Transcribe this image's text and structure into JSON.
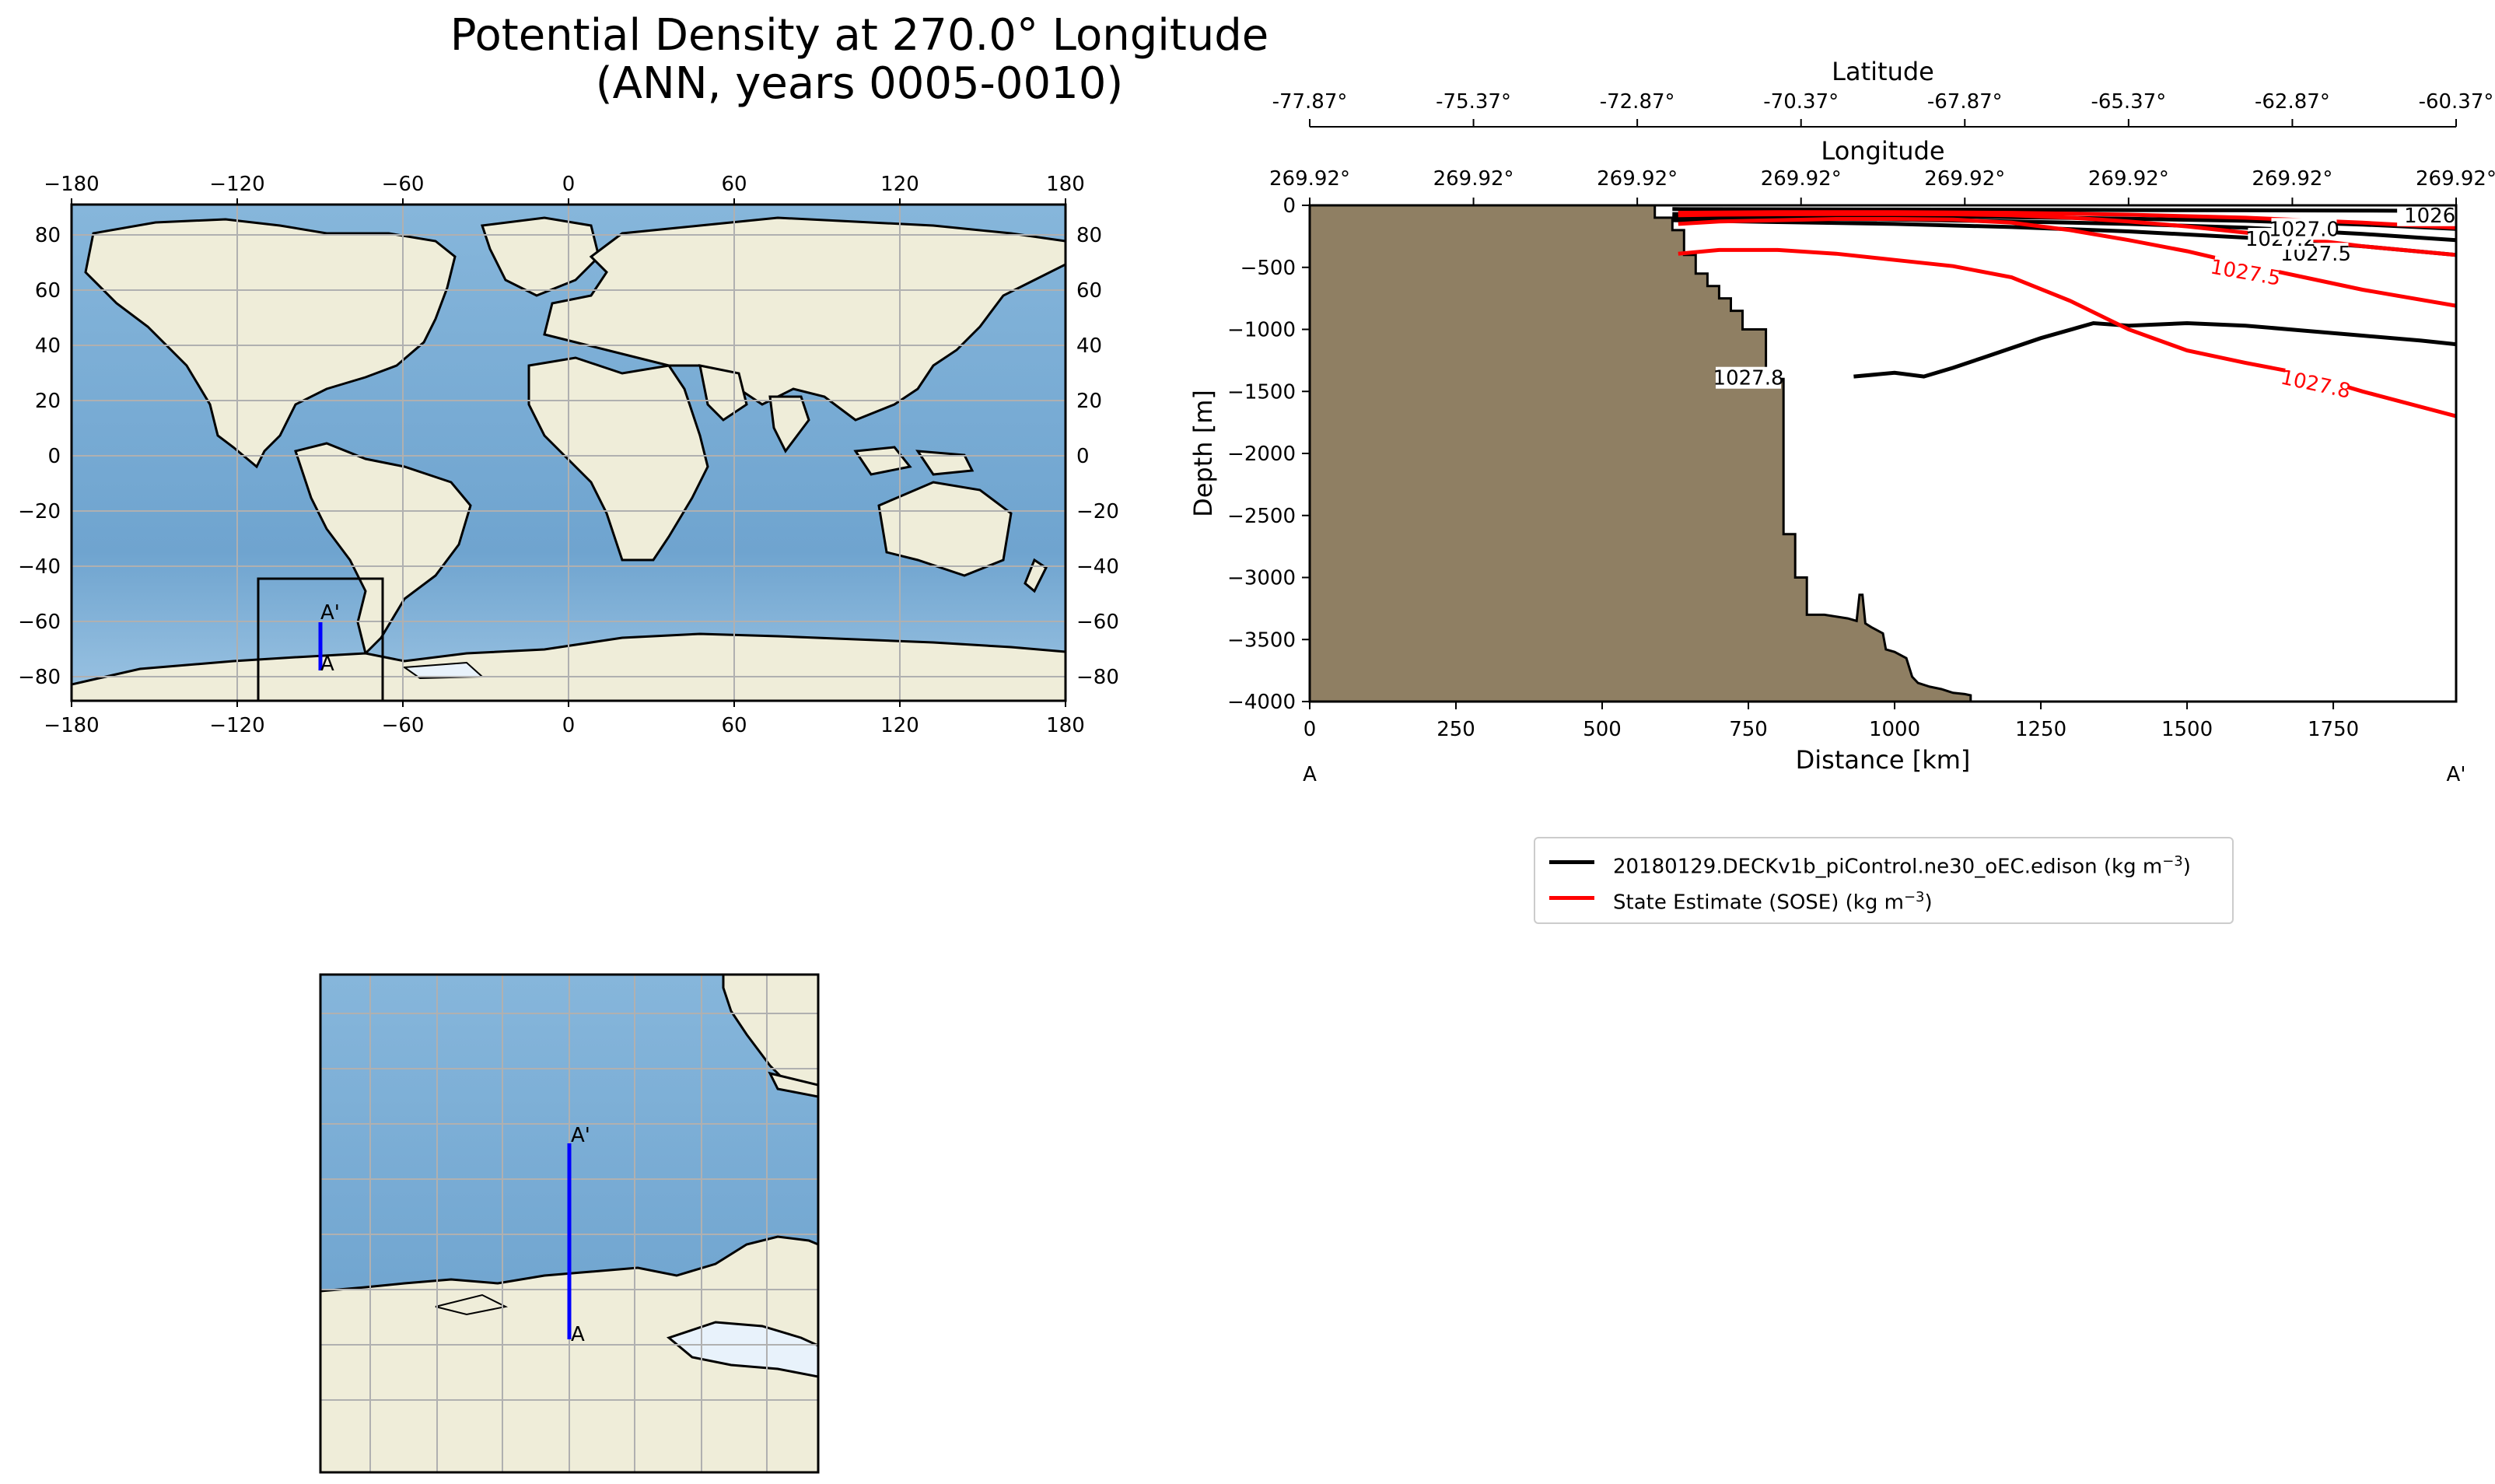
{
  "figure": {
    "title_line1": "Potential Density at 270.0° Longitude",
    "title_line2": "(ANN, years 0005-0010)"
  },
  "colors": {
    "ocean": "#7aacd3",
    "land": "#efedd9",
    "ice": "#e8f2fb",
    "bathymetry": "#8f7f63",
    "model_line": "#000000",
    "obs_line": "#ff0000",
    "transect": "#0000ff",
    "grid": "#b0b0b0"
  },
  "global_map": {
    "x_ticks": [
      "−180",
      "−120",
      "−60",
      "0",
      "60",
      "120",
      "180"
    ],
    "y_ticks": [
      "80",
      "60",
      "40",
      "20",
      "0",
      "−20",
      "−40",
      "−60",
      "−80"
    ],
    "transect_start_label": "A",
    "transect_end_label": "A'"
  },
  "inset_map": {
    "transect_start_label": "A",
    "transect_end_label": "A'"
  },
  "chart_data": [
    {
      "type": "line",
      "subtype": "contour-section",
      "xlabel": "Distance [km]",
      "ylabel": "Depth [m]",
      "xlim": [
        0,
        1960
      ],
      "ylim": [
        -4000,
        0
      ],
      "x_ticks": [
        0,
        250,
        500,
        750,
        1000,
        1250,
        1500,
        1750
      ],
      "y_ticks": [
        0,
        -500,
        -1000,
        -1500,
        -2000,
        -2500,
        -3000,
        -3500,
        -4000
      ],
      "x_tick_labels": [
        "0",
        "250",
        "500",
        "750",
        "1000",
        "1250",
        "1500",
        "1750"
      ],
      "y_tick_labels": [
        "0",
        "−500",
        "−1000",
        "−1500",
        "−2000",
        "−2500",
        "−3000",
        "−3500",
        "−4000"
      ],
      "section_start_label": "A",
      "section_end_label": "A'",
      "secondary_axes": {
        "longitude_label": "Longitude",
        "longitude_ticks": [
          "269.92°",
          "269.92°",
          "269.92°",
          "269.92°",
          "269.92°",
          "269.92°",
          "269.92°",
          "269.92°"
        ],
        "latitude_label": "Latitude",
        "latitude_ticks": [
          "-77.87°",
          "-75.37°",
          "-72.87°",
          "-70.37°",
          "-67.87°",
          "-65.37°",
          "-62.87°",
          "-60.37°"
        ]
      },
      "legend": [
        {
          "name": "20180129.DECKv1b_piControl.ne30_oEC.edison (kg m",
          "suffix": ")",
          "exponent": "−3",
          "color": "#000000"
        },
        {
          "name": "State Estimate (SOSE) (kg m",
          "suffix": ")",
          "exponent": "−3",
          "color": "#ff0000"
        }
      ],
      "bathymetry_profile": {
        "distance_km": [
          0,
          590,
          590,
          620,
          620,
          640,
          640,
          660,
          660,
          680,
          680,
          700,
          700,
          720,
          720,
          740,
          740,
          780,
          780,
          810,
          810,
          830,
          830,
          850,
          850,
          880,
          880,
          920,
          935,
          940,
          945,
          950,
          960,
          980,
          985,
          1000,
          1020,
          1030,
          1040,
          1060,
          1080,
          1100,
          1120,
          1130,
          1130,
          0
        ],
        "depth_m": [
          0,
          0,
          -100,
          -100,
          -200,
          -200,
          -400,
          -400,
          -550,
          -550,
          -650,
          -650,
          -750,
          -750,
          -850,
          -850,
          -1000,
          -1000,
          -1400,
          -1400,
          -2650,
          -2650,
          -3000,
          -3000,
          -3300,
          -3300,
          -3300,
          -3330,
          -3350,
          -3140,
          -3140,
          -3370,
          -3400,
          -3450,
          -3580,
          -3600,
          -3650,
          -3800,
          -3850,
          -3880,
          -3900,
          -3930,
          -3940,
          -3950,
          -4000,
          -4000
        ]
      },
      "series": [
        {
          "name": "model 1027.8",
          "label": "1027.8",
          "color": "#000000",
          "x": [
            930,
            1000,
            1050,
            1100,
            1150,
            1250,
            1340,
            1400,
            1500,
            1600,
            1700,
            1800,
            1900,
            1960
          ],
          "y": [
            -1380,
            -1350,
            -1380,
            -1310,
            -1230,
            -1070,
            -950,
            -970,
            -950,
            -970,
            -1010,
            -1050,
            -1090,
            -1120
          ]
        },
        {
          "name": "model 1027.5",
          "label": "1027.5",
          "color": "#000000",
          "x": [
            620,
            800,
            1000,
            1200,
            1400,
            1600,
            1800,
            1960
          ],
          "y": [
            -120,
            -135,
            -150,
            -175,
            -210,
            -260,
            -330,
            -400
          ]
        },
        {
          "name": "model 1027.2",
          "label": "1027.2",
          "color": "#000000",
          "x": [
            620,
            800,
            1000,
            1200,
            1400,
            1600,
            1800,
            1960
          ],
          "y": [
            -95,
            -105,
            -115,
            -130,
            -150,
            -180,
            -230,
            -280
          ]
        },
        {
          "name": "model 1027.0",
          "label": "1027.0",
          "color": "#000000",
          "x": [
            620,
            800,
            1000,
            1200,
            1400,
            1600,
            1800,
            1960
          ],
          "y": [
            -70,
            -78,
            -85,
            -95,
            -108,
            -125,
            -155,
            -190
          ]
        },
        {
          "name": "model 1026",
          "label": "1026",
          "color": "#000000",
          "x": [
            620,
            800,
            1000,
            1200,
            1400,
            1600,
            1800,
            1960
          ],
          "y": [
            -30,
            -32,
            -34,
            -36,
            -38,
            -40,
            -42,
            -45
          ]
        },
        {
          "name": "SOSE 1027.8",
          "label": "1027.8",
          "color": "#ff0000",
          "x": [
            630,
            700,
            800,
            900,
            1000,
            1100,
            1200,
            1300,
            1400,
            1500,
            1600,
            1700,
            1800,
            1960
          ],
          "y": [
            -390,
            -360,
            -360,
            -390,
            -440,
            -490,
            -580,
            -770,
            -1000,
            -1170,
            -1270,
            -1360,
            -1500,
            -1700
          ]
        },
        {
          "name": "SOSE 1027.5",
          "label": "1027.5",
          "color": "#ff0000",
          "x": [
            630,
            700,
            800,
            900,
            1000,
            1100,
            1200,
            1300,
            1400,
            1500,
            1600,
            1700,
            1800,
            1960
          ],
          "y": [
            -150,
            -130,
            -120,
            -110,
            -110,
            -115,
            -140,
            -200,
            -280,
            -370,
            -480,
            -580,
            -680,
            -810
          ]
        },
        {
          "name": "SOSE 1027.2",
          "label": "1027.2",
          "color": "#ff0000",
          "x": [
            630,
            700,
            800,
            900,
            1000,
            1100,
            1200,
            1300,
            1400,
            1500,
            1600,
            1700,
            1800,
            1960
          ],
          "y": [
            -80,
            -75,
            -72,
            -70,
            -70,
            -72,
            -80,
            -100,
            -130,
            -170,
            -220,
            -270,
            -330,
            -400
          ]
        },
        {
          "name": "SOSE 1027.0",
          "label": "1027.0",
          "color": "#ff0000",
          "x": [
            630,
            800,
            1000,
            1200,
            1400,
            1600,
            1800,
            1960
          ],
          "y": [
            -60,
            -55,
            -55,
            -60,
            -75,
            -100,
            -140,
            -180
          ]
        }
      ]
    }
  ]
}
